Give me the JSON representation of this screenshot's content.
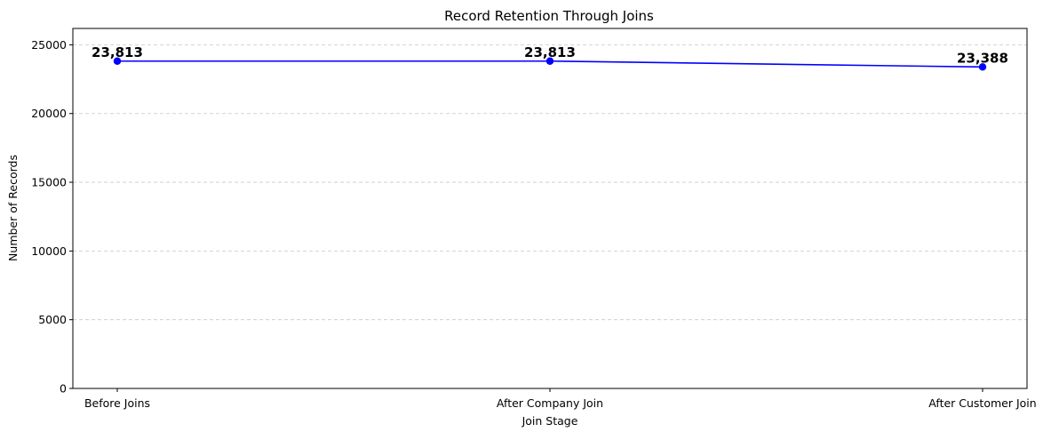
{
  "chart_data": {
    "type": "line",
    "title": "Record Retention Through Joins",
    "xlabel": "Join Stage",
    "ylabel": "Number of Records",
    "categories": [
      "Before Joins",
      "After Company Join",
      "After Customer Join"
    ],
    "series": [
      {
        "values": [
          23813,
          23813,
          23388
        ],
        "data_labels": [
          "23,813",
          "23,813",
          "23,388"
        ],
        "color": "#0000ff",
        "marker": "circle"
      }
    ],
    "ylim": [
      0,
      26190
    ],
    "yticks": [
      0,
      5000,
      10000,
      15000,
      20000,
      25000
    ],
    "ytick_labels": [
      "0",
      "5000",
      "10000",
      "15000",
      "20000",
      "25000"
    ],
    "grid": {
      "y": true,
      "x": false,
      "style": "dashed"
    },
    "legend": "none"
  }
}
